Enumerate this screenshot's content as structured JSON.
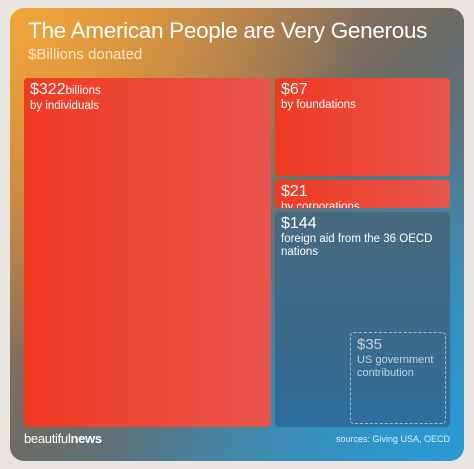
{
  "header": {
    "title": "The American People are Very Generous",
    "subtitle": "$Billions donated"
  },
  "chart_data": {
    "type": "treemap",
    "title": "The American People are Very Generous",
    "subtitle": "$Billions donated",
    "unit": "$Billions",
    "items": [
      {
        "value": 322,
        "amount_label": "$322",
        "unit_label": "billions",
        "description": "by individuals",
        "color": "#f03a22"
      },
      {
        "value": 67,
        "amount_label": "$67",
        "unit_label": "",
        "description": "by foundations",
        "color": "#f03a22"
      },
      {
        "value": 21,
        "amount_label": "$21",
        "unit_label": "",
        "description": "by corporations",
        "color": "#f03a22"
      },
      {
        "value": 144,
        "amount_label": "$144",
        "unit_label": "",
        "description": "foreign aid from the 36 OECD nations",
        "color": "#3a6a8c"
      },
      {
        "value": 35,
        "amount_label": "$35",
        "unit_label": "",
        "description": "US government contribution",
        "color": "#3a6a8c",
        "outlined": true
      }
    ]
  },
  "footer": {
    "brand_light": "beautiful",
    "brand_bold": "news",
    "sources": "sources: Giving USA, OECD"
  }
}
